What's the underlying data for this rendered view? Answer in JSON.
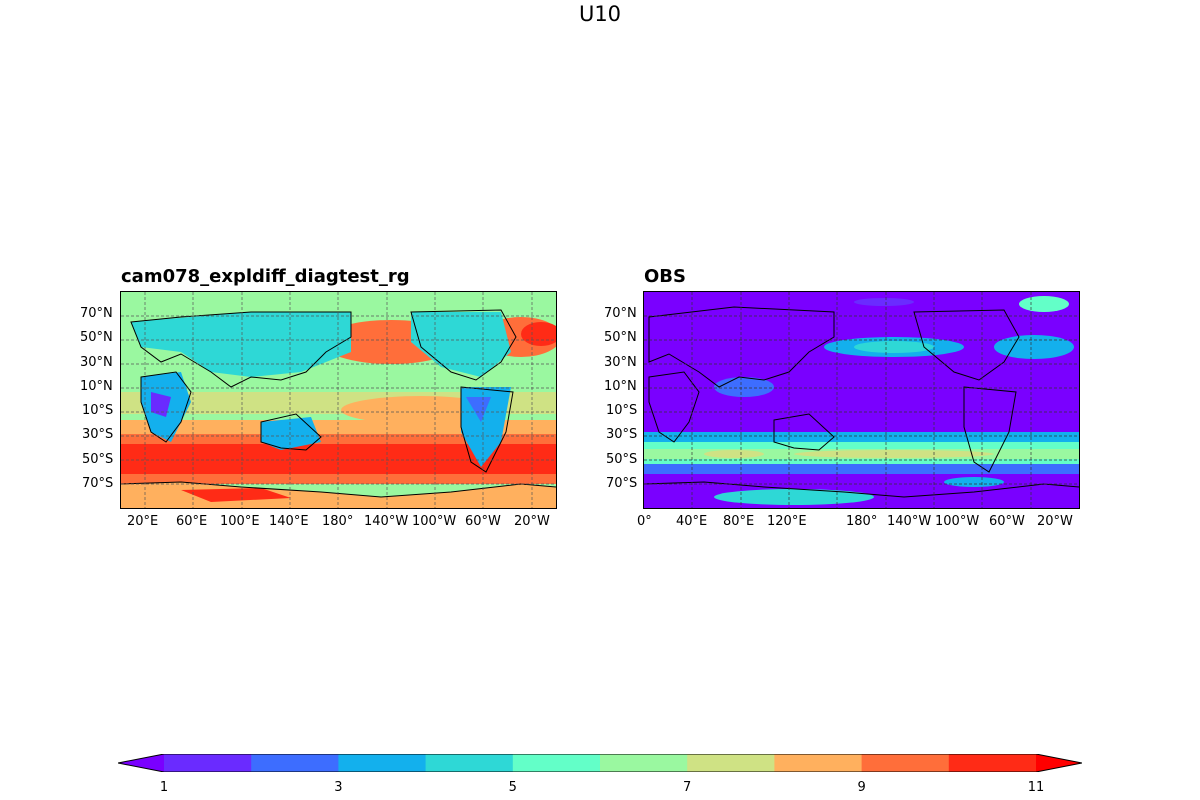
{
  "figure": {
    "title": "U10"
  },
  "panels": [
    {
      "title": "cam078_expldiff_diagtest_rg",
      "lat_ticks": [
        "70°N",
        "50°N",
        "30°N",
        "10°N",
        "10°S",
        "30°S",
        "50°S",
        "70°S"
      ],
      "lon_ticks": [
        "20°E",
        "60°E",
        "100°E",
        "140°E",
        "180°",
        "140°W",
        "100°W",
        "60°W",
        "20°W"
      ]
    },
    {
      "title": "OBS",
      "lat_ticks": [
        "70°N",
        "50°N",
        "30°N",
        "10°N",
        "10°S",
        "30°S",
        "50°S",
        "70°S"
      ],
      "lon_ticks": [
        "0°",
        "40°E",
        "80°E",
        "120°E",
        "180°",
        "140°W",
        "100°W",
        "60°W",
        "20°W"
      ]
    }
  ],
  "colorbar": {
    "levels": [
      1,
      2,
      3,
      4,
      5,
      6,
      7,
      8,
      9,
      10,
      11
    ],
    "tick_labels": [
      "1",
      "3",
      "5",
      "7",
      "9",
      "11"
    ],
    "colors": [
      "#6a2bff",
      "#3d6dff",
      "#13b0ed",
      "#2ed8d6",
      "#63ffc8",
      "#9af8a0",
      "#cfe284",
      "#ffb05e",
      "#ff6e3a",
      "#ff2b16"
    ],
    "under_color": "#7a00ff",
    "over_color": "#ff0000",
    "extend": "both"
  }
}
